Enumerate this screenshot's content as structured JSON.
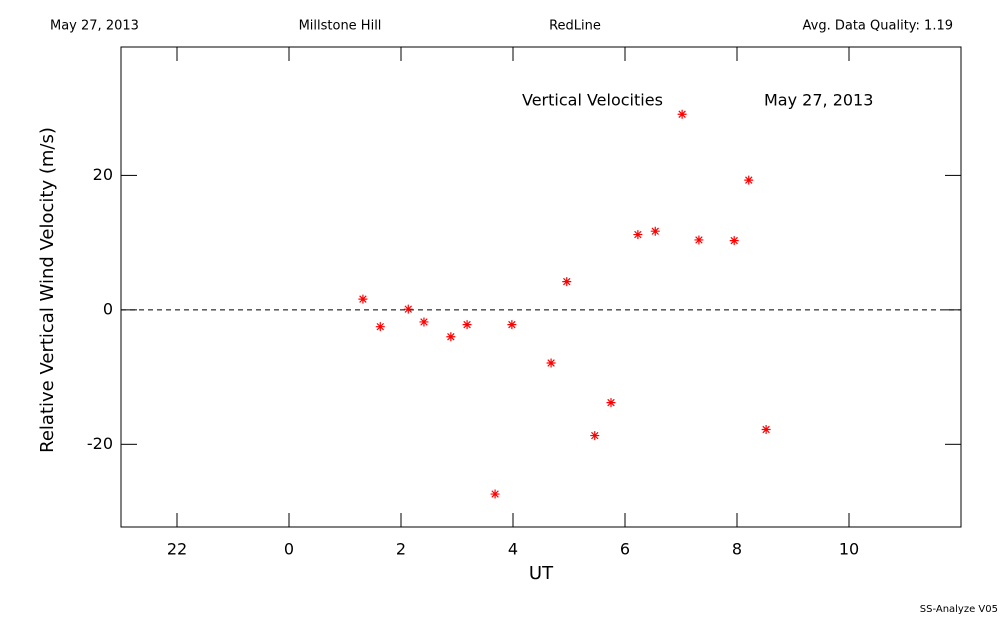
{
  "chart_data": {
    "type": "scatter",
    "header": [
      "May 27, 2013",
      "Millstone Hill",
      "RedLine",
      "Avg. Data Quality: 1.19"
    ],
    "annotations": [
      "Vertical Velocities",
      "May 27, 2013"
    ],
    "xlabel": "UT",
    "ylabel": "Relative Vertical Wind Velocity (m/s)",
    "footer": "SS-Analyze V05",
    "xlim": [
      -3,
      12
    ],
    "ylim": [
      -32.3,
      39.1
    ],
    "xticks": [
      {
        "value": -2,
        "label": "22"
      },
      0,
      2,
      4,
      6,
      8,
      10
    ],
    "yticks": [
      -20,
      0,
      20
    ],
    "hline": 0,
    "color": "#ff0000",
    "x": [
      1.32,
      1.63,
      2.13,
      2.41,
      2.89,
      3.18,
      3.68,
      3.98,
      4.68,
      4.96,
      5.46,
      5.75,
      6.23,
      6.54,
      7.02,
      7.32,
      7.95,
      8.21,
      8.52
    ],
    "values": [
      1.6,
      -2.5,
      0.1,
      -1.8,
      -4.0,
      -2.2,
      -27.4,
      -2.2,
      -7.9,
      4.2,
      -18.7,
      -13.8,
      11.2,
      11.7,
      29.1,
      10.4,
      10.3,
      19.3,
      -17.8
    ]
  }
}
